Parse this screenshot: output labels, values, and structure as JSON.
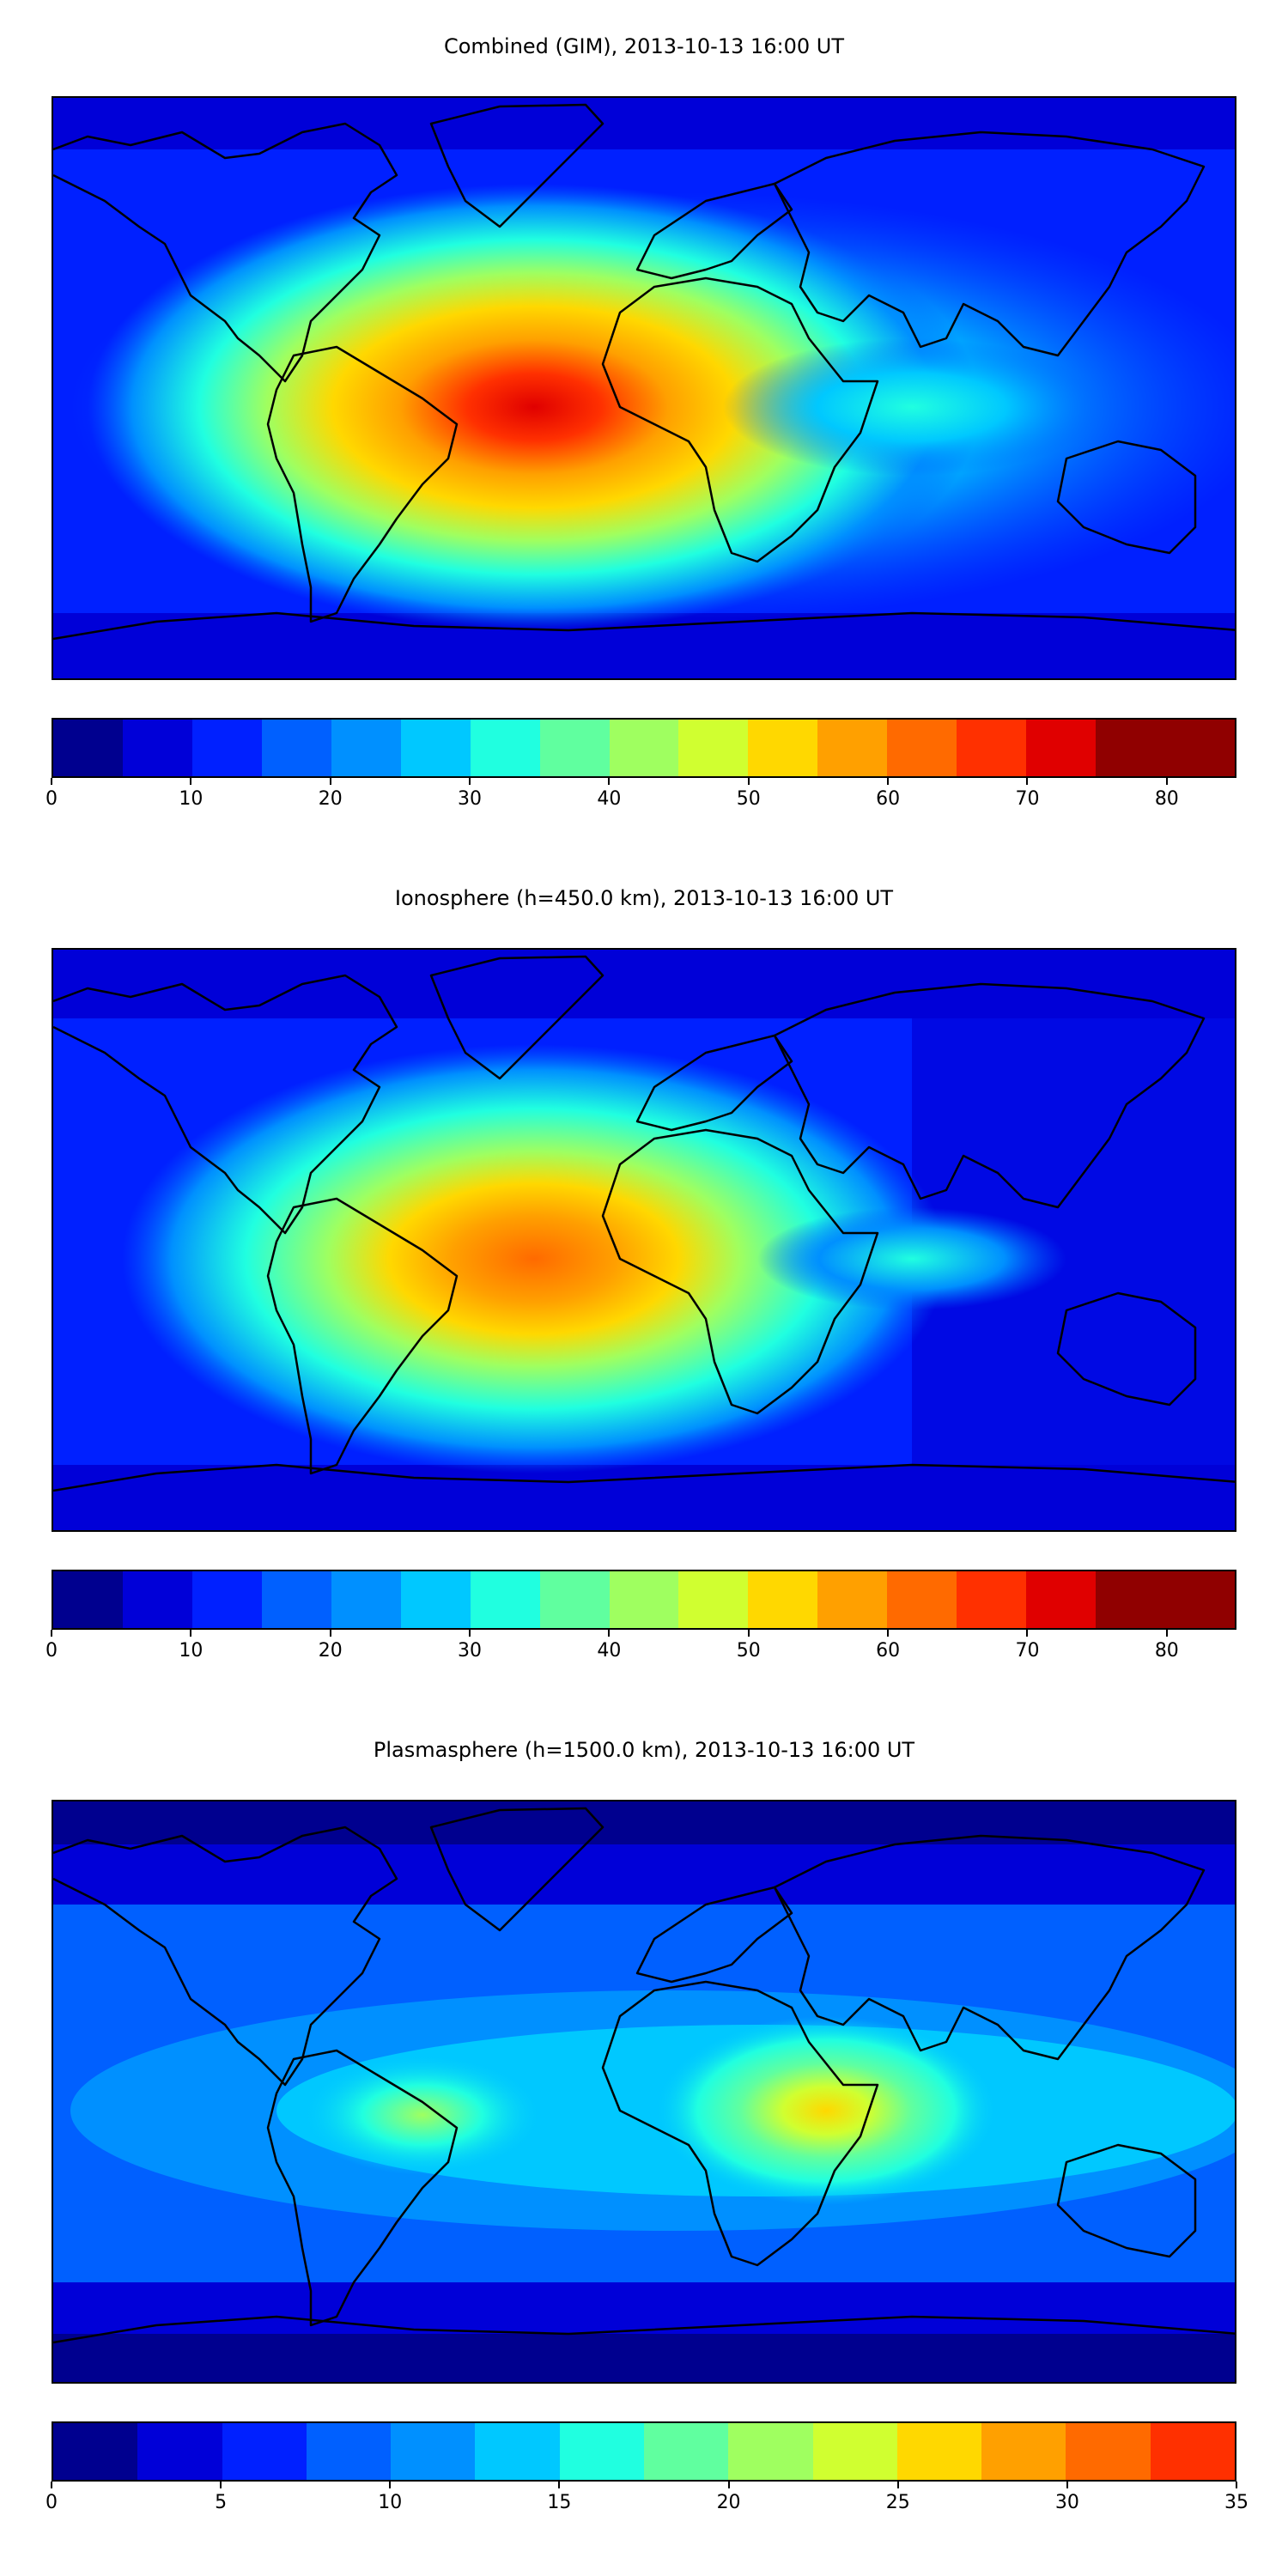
{
  "colors": [
    "#00008f",
    "#0000d8",
    "#0020ff",
    "#0060ff",
    "#0090ff",
    "#00c8ff",
    "#20ffe0",
    "#60ff9f",
    "#9fff60",
    "#d0ff30",
    "#ffd800",
    "#ffa000",
    "#ff6a00",
    "#ff3000",
    "#e00000",
    "#900000"
  ],
  "panels": [
    {
      "title": "Combined (GIM), 2013-10-13 16:00 UT",
      "colorbar": {
        "min": 0,
        "max": 85,
        "step": 5,
        "tick_labels": [
          "0",
          "10",
          "20",
          "30",
          "40",
          "50",
          "60",
          "70",
          "80"
        ],
        "tick_values": [
          0,
          10,
          20,
          30,
          40,
          50,
          60,
          70,
          80
        ]
      },
      "map_data": {
        "type": "contour_map",
        "quantity": "TEC",
        "peak_value": 75,
        "peak_lon": -55,
        "peak_lat": 8
      }
    },
    {
      "title": "Ionosphere  (h=450.0 km), 2013-10-13 16:00 UT",
      "colorbar": {
        "min": 0,
        "max": 85,
        "step": 5,
        "tick_labels": [
          "0",
          "10",
          "20",
          "30",
          "40",
          "50",
          "60",
          "70",
          "80"
        ],
        "tick_values": [
          0,
          10,
          20,
          30,
          40,
          50,
          60,
          70,
          80
        ]
      },
      "map_data": {
        "type": "contour_map",
        "quantity": "TEC",
        "peak_value": 65,
        "peak_lon": -50,
        "peak_lat": 8
      }
    },
    {
      "title": "Plasmasphere (h=1500.0 km), 2013-10-13 16:00 UT",
      "colorbar": {
        "min": 0,
        "max": 35,
        "step": 2.5,
        "tick_labels": [
          "0",
          "5",
          "10",
          "15",
          "20",
          "25",
          "30",
          "35"
        ],
        "tick_values": [
          0,
          5,
          10,
          15,
          20,
          25,
          30,
          35
        ]
      },
      "map_data": {
        "type": "contour_map",
        "quantity": "TEC",
        "peak_value": 25,
        "peak_lon": 40,
        "peak_lat": 2
      }
    }
  ]
}
